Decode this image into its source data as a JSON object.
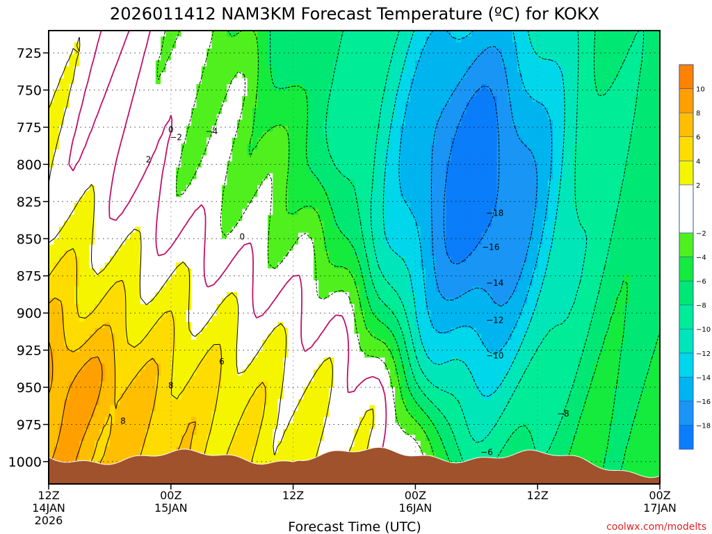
{
  "chart_data": {
    "type": "heatmap",
    "title": "2026011412 NAM3KM Forecast Temperature (ºC) for KOKX",
    "xlabel": "Forecast Time (UTC)",
    "ylabel": "",
    "credit": "coolwx.com/modelts",
    "x_ticks": [
      {
        "lines": [
          "12Z",
          "14JAN",
          "2026"
        ],
        "hour": 0
      },
      {
        "lines": [
          "00Z",
          "15JAN"
        ],
        "hour": 12
      },
      {
        "lines": [
          "12Z"
        ],
        "hour": 24
      },
      {
        "lines": [
          "00Z",
          "16JAN"
        ],
        "hour": 36
      },
      {
        "lines": [
          "12Z"
        ],
        "hour": 48
      },
      {
        "lines": [
          "00Z",
          "17JAN"
        ],
        "hour": 60
      }
    ],
    "xlim": [
      0,
      60
    ],
    "y_ticks": [
      725,
      750,
      775,
      800,
      825,
      850,
      875,
      900,
      925,
      950,
      975,
      1000
    ],
    "ylim": [
      1015,
      710
    ],
    "colorbar": {
      "min": -20,
      "max": 12,
      "tick_values": [
        10,
        8,
        6,
        4,
        2,
        -2,
        -4,
        -6,
        -8,
        -10,
        -12,
        -14,
        -16,
        -18
      ],
      "tick_labels": [
        "10",
        "8",
        "6",
        "4",
        "2",
        "−2",
        "−4",
        "−6",
        "−8",
        "−10",
        "−12",
        "−14",
        "−16",
        "−18"
      ],
      "bands": [
        {
          "from": -20,
          "to": -18,
          "color": "#0a7dfa"
        },
        {
          "from": -18,
          "to": -16,
          "color": "#1996f5"
        },
        {
          "from": -16,
          "to": -14,
          "color": "#00b4f0"
        },
        {
          "from": -14,
          "to": -12,
          "color": "#00d7eb"
        },
        {
          "from": -12,
          "to": -10,
          "color": "#00e6b9"
        },
        {
          "from": -10,
          "to": -8,
          "color": "#00ec96"
        },
        {
          "from": -8,
          "to": -6,
          "color": "#00e873"
        },
        {
          "from": -6,
          "to": -4,
          "color": "#14eb3c"
        },
        {
          "from": -4,
          "to": -2,
          "color": "#50f01e"
        },
        {
          "from": -2,
          "to": 2,
          "color": "#ffffff"
        },
        {
          "from": 2,
          "to": 4,
          "color": "#f5f500"
        },
        {
          "from": 4,
          "to": 6,
          "color": "#ffdc00"
        },
        {
          "from": 6,
          "to": 8,
          "color": "#ffbe00"
        },
        {
          "from": 8,
          "to": 10,
          "color": "#ffa000"
        },
        {
          "from": 10,
          "to": 12,
          "color": "#ff8200"
        }
      ]
    },
    "contour_labels": [
      {
        "text": "0",
        "hour": 12.0,
        "p": 777
      },
      {
        "text": "−2",
        "hour": 12.5,
        "p": 782
      },
      {
        "text": "−4",
        "hour": 16.0,
        "p": 778
      },
      {
        "text": "2",
        "hour": 9.8,
        "p": 797
      },
      {
        "text": "0",
        "hour": 19.0,
        "p": 849
      },
      {
        "text": "6",
        "hour": 17.0,
        "p": 933
      },
      {
        "text": "8",
        "hour": 12.0,
        "p": 949
      },
      {
        "text": "8",
        "hour": 7.3,
        "p": 973
      },
      {
        "text": "−18",
        "hour": 43.8,
        "p": 833
      },
      {
        "text": "−16",
        "hour": 43.4,
        "p": 856
      },
      {
        "text": "−14",
        "hour": 43.8,
        "p": 880
      },
      {
        "text": "−12",
        "hour": 43.8,
        "p": 905
      },
      {
        "text": "−10",
        "hour": 43.8,
        "p": 929
      },
      {
        "text": "−8",
        "hour": 50.5,
        "p": 968
      },
      {
        "text": "−6",
        "hour": 43.0,
        "p": 994
      }
    ],
    "colors": {
      "terrain": "#a0522d",
      "freezing_line": "#c0106a",
      "warm_contour": "#000000",
      "cold_contour": "#000000",
      "credit": "#e02020"
    }
  }
}
